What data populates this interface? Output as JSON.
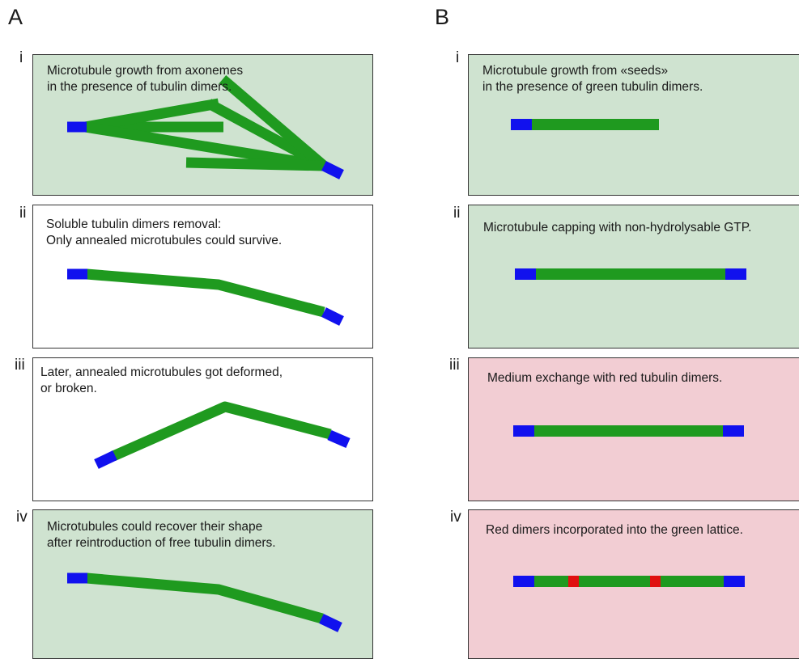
{
  "columns": {
    "a": "A",
    "b": "B"
  },
  "panels_a": [
    {
      "num": "i",
      "caption": "Microtubule growth from axonemes\nin the presence of tubulin dimers."
    },
    {
      "num": "ii",
      "caption": "Soluble tubulin dimers removal:\nOnly annealed microtubules could survive."
    },
    {
      "num": "iii",
      "caption": "Later, annealed microtubules got deformed,\nor broken."
    },
    {
      "num": "iv",
      "caption": "Microtubules could recover their shape\nafter reintroduction of free tubulin dimers."
    }
  ],
  "panels_b": [
    {
      "num": "i",
      "caption": "Microtubule growth from «seeds»\nin the presence of green tubulin dimers."
    },
    {
      "num": "ii",
      "caption": "Microtubule capping with non-hydrolysable GTP."
    },
    {
      "num": "iii",
      "caption": "Medium exchange with red tubulin dimers."
    },
    {
      "num": "iv",
      "caption": "Red dimers incorporated into the green lattice."
    }
  ],
  "colors": {
    "microtubule": "#1f9a1f",
    "seed": "#1111ee",
    "red_dimer": "#e01010",
    "panel_green": "#cfe3d0",
    "panel_pink": "#f2cdd3",
    "panel_white": "#ffffff"
  }
}
